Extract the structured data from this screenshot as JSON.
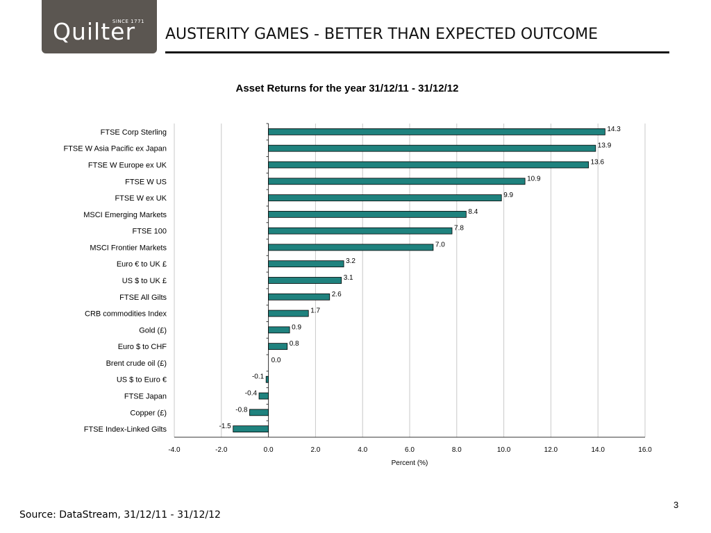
{
  "brand": {
    "name": "Quilter",
    "since": "SINCE 1771"
  },
  "page": {
    "title": "AUSTERITY GAMES - BETTER THAN EXPECTED OUTCOME",
    "number": "3"
  },
  "footer": {
    "source": "Source: DataStream, 31/12/11 - 31/12/12"
  },
  "colors": {
    "bar": "#1f827e",
    "bar_outline": "#000000",
    "logo_bg": "#5b5651"
  },
  "chart_data": {
    "type": "bar",
    "orientation": "horizontal",
    "title": "Asset Returns for the year 31/12/11 - 31/12/12",
    "xlabel": "Percent (%)",
    "ylabel": "",
    "xlim": [
      -4.0,
      16.0
    ],
    "x_ticks": [
      "-4.0",
      "-2.0",
      "0.0",
      "2.0",
      "4.0",
      "6.0",
      "8.0",
      "10.0",
      "12.0",
      "14.0",
      "16.0"
    ],
    "x_tick_values": [
      -4,
      -2,
      0,
      2,
      4,
      6,
      8,
      10,
      12,
      14,
      16
    ],
    "grid": "vertical",
    "categories": [
      "FTSE Corp Sterling",
      "FTSE W Asia Pacific ex Japan",
      "FTSE W Europe ex UK",
      "FTSE W US",
      "FTSE W ex UK",
      "MSCI Emerging Markets",
      "FTSE 100",
      "MSCI Frontier Markets",
      "Euro € to UK £",
      "US $ to UK £",
      "FTSE All Gilts",
      "CRB commodities Index",
      "Gold (£)",
      "Euro $ to  CHF",
      "Brent crude oil (£)",
      "US $ to Euro €",
      "FTSE Japan",
      "Copper (£)",
      "FTSE Index-Linked Gilts"
    ],
    "values": [
      14.3,
      13.9,
      13.6,
      10.9,
      9.9,
      8.4,
      7.8,
      7.0,
      3.2,
      3.1,
      2.6,
      1.7,
      0.9,
      0.8,
      0.0,
      -0.1,
      -0.4,
      -0.8,
      -1.5
    ],
    "data_labels": [
      "14.3",
      "13.9",
      "13.6",
      "10.9",
      "9.9",
      "8.4",
      "7.8",
      "7.0",
      "3.2",
      "3.1",
      "2.6",
      "1.7",
      "0.9",
      "0.8",
      "0.0",
      "-0.1",
      "-0.4",
      "-0.8",
      "-1.5"
    ]
  }
}
